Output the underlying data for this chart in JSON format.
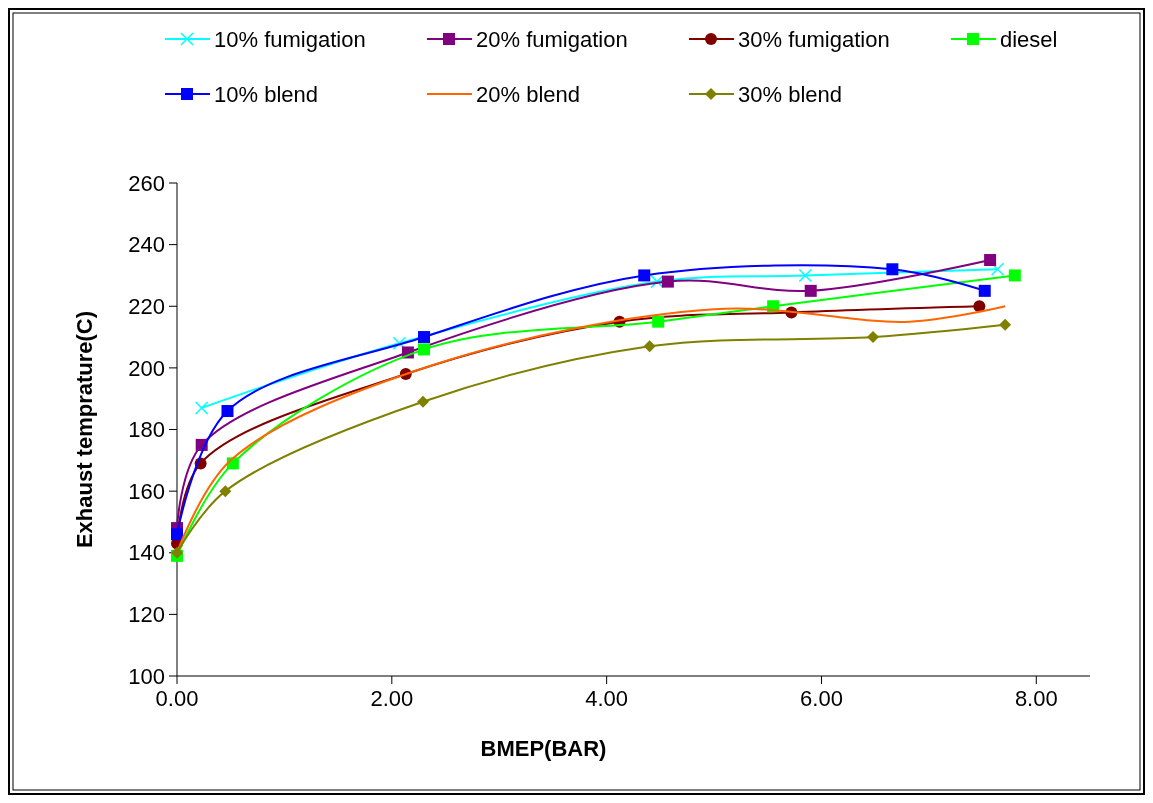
{
  "chart_data": {
    "type": "line",
    "xlabel": "BMEP(BAR)",
    "ylabel": "Exhaust temprature(C)",
    "xlim": [
      0,
      8.5
    ],
    "xticks": [
      {
        "value": 0,
        "label": "0.00"
      },
      {
        "value": 2,
        "label": "2.00"
      },
      {
        "value": 4,
        "label": "4.00"
      },
      {
        "value": 6,
        "label": "6.00"
      },
      {
        "value": 8,
        "label": "8.00"
      }
    ],
    "ylim": [
      100,
      260
    ],
    "yticks": [
      100,
      120,
      140,
      160,
      180,
      200,
      220,
      240,
      260
    ],
    "grid": false,
    "legend": "top",
    "series": [
      {
        "name": "10% fumigation",
        "color": "#00ffff",
        "marker": "cross",
        "x": [
          0.23,
          2.07,
          4.47,
          5.85,
          7.64
        ],
        "values": [
          187,
          208,
          228,
          230,
          232
        ]
      },
      {
        "name": "20% fumigation",
        "color": "#800080",
        "marker": "square",
        "x": [
          0,
          0.23,
          2.15,
          4.57,
          5.9,
          7.57
        ],
        "values": [
          148,
          175,
          205,
          228,
          225,
          235
        ]
      },
      {
        "name": "30% fumigation",
        "color": "#800000",
        "marker": "circle",
        "x": [
          0,
          0.22,
          2.13,
          4.12,
          5.72,
          7.47
        ],
        "values": [
          143,
          169,
          198,
          215,
          218,
          220
        ]
      },
      {
        "name": "diesel",
        "color": "#00ff00",
        "marker": "square",
        "x": [
          0,
          0.52,
          2.3,
          4.48,
          5.55,
          7.8
        ],
        "values": [
          139,
          169,
          206,
          215,
          220,
          230
        ]
      },
      {
        "name": "10% blend",
        "color": "#0000ff",
        "marker": "square",
        "x": [
          0,
          0.47,
          2.3,
          4.35,
          6.66,
          7.52
        ],
        "values": [
          146,
          186,
          210,
          230,
          232,
          225
        ]
      },
      {
        "name": "20% blend",
        "color": "#ff6600",
        "marker": "none",
        "x": [
          0,
          0.5,
          2.39,
          5.0,
          6.82,
          7.71
        ],
        "values": [
          140,
          170,
          201,
          219,
          215,
          220
        ]
      },
      {
        "name": "30% blend",
        "color": "#808000",
        "marker": "diamond",
        "x": [
          0,
          0.45,
          2.29,
          4.4,
          6.48,
          7.71
        ],
        "values": [
          140,
          160,
          189,
          207,
          210,
          214
        ]
      }
    ]
  }
}
